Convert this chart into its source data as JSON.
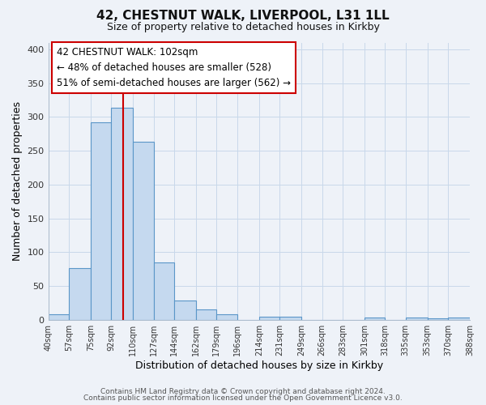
{
  "title": "42, CHESTNUT WALK, LIVERPOOL, L31 1LL",
  "subtitle": "Size of property relative to detached houses in Kirkby",
  "xlabel": "Distribution of detached houses by size in Kirkby",
  "ylabel": "Number of detached properties",
  "footer_line1": "Contains HM Land Registry data © Crown copyright and database right 2024.",
  "footer_line2": "Contains public sector information licensed under the Open Government Licence v3.0.",
  "bin_edges": [
    40,
    57,
    75,
    92,
    110,
    127,
    144,
    162,
    179,
    196,
    214,
    231,
    249,
    266,
    283,
    301,
    318,
    335,
    353,
    370,
    388
  ],
  "bin_labels": [
    "40sqm",
    "57sqm",
    "75sqm",
    "92sqm",
    "110sqm",
    "127sqm",
    "144sqm",
    "162sqm",
    "179sqm",
    "196sqm",
    "214sqm",
    "231sqm",
    "249sqm",
    "266sqm",
    "283sqm",
    "301sqm",
    "318sqm",
    "335sqm",
    "353sqm",
    "370sqm",
    "388sqm"
  ],
  "bar_heights": [
    8,
    76,
    292,
    314,
    263,
    85,
    28,
    15,
    8,
    0,
    5,
    5,
    0,
    0,
    0,
    3,
    0,
    3,
    2,
    3
  ],
  "bar_color": "#c5d9ef",
  "bar_edgecolor": "#5a96c8",
  "ylim": [
    0,
    410
  ],
  "yticks": [
    0,
    50,
    100,
    150,
    200,
    250,
    300,
    350,
    400
  ],
  "property_size": 102,
  "vline_color": "#cc0000",
  "annotation_line1": "42 CHESTNUT WALK: 102sqm",
  "annotation_line2": "← 48% of detached houses are smaller (528)",
  "annotation_line3": "51% of semi-detached houses are larger (562) →",
  "annotation_box_edgecolor": "#cc0000",
  "grid_color": "#c8d8ea",
  "background_color": "#eef2f8",
  "title_fontsize": 11,
  "subtitle_fontsize": 9,
  "footer_fontsize": 6.5,
  "annotation_fontsize": 8.5
}
